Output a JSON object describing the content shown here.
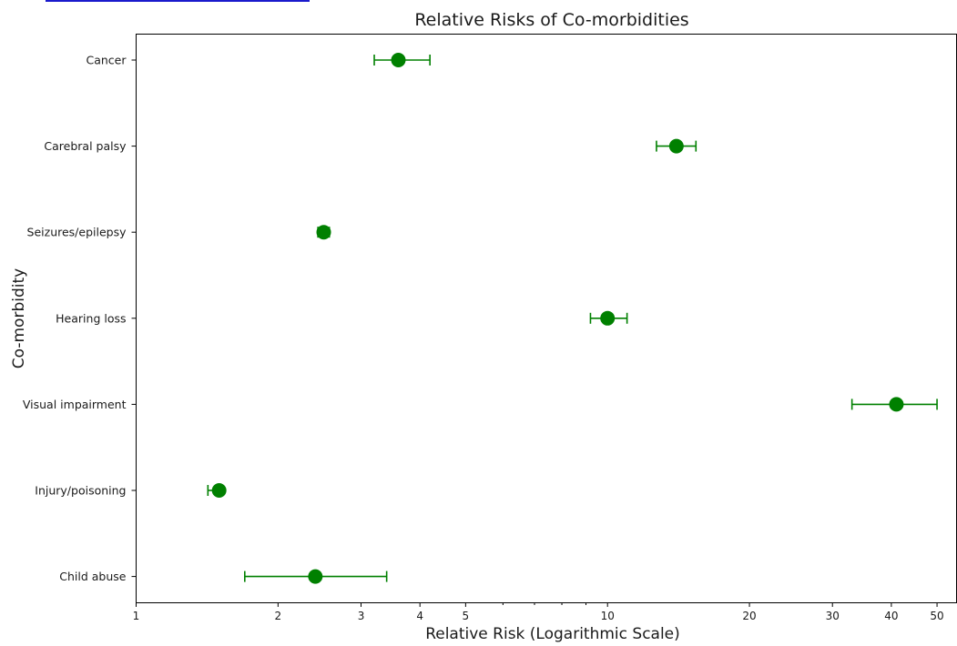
{
  "chart_data": {
    "type": "scatter",
    "title": "Relative Risks of Co-morbidities",
    "xlabel": "Relative Risk (Logarithmic Scale)",
    "ylabel": "Co-morbidity",
    "x_scale": "log",
    "xlim": [
      1,
      55
    ],
    "x_ticks": [
      1,
      2,
      3,
      4,
      5,
      10,
      20,
      30,
      40,
      50
    ],
    "x_tick_labels": [
      "1",
      "2",
      "3",
      "4",
      "5",
      "10",
      "20",
      "30",
      "40",
      "50"
    ],
    "grid": false,
    "legend": "none",
    "color": "#008000",
    "categories": [
      "Cancer",
      "Carebral palsy",
      "Seizures/epilepsy",
      "Hearing loss",
      "Visual impairment",
      "Injury/poisoning",
      "Child abuse"
    ],
    "points": [
      {
        "category": "Cancer",
        "value": 3.6,
        "ci_low": 3.2,
        "ci_high": 4.2
      },
      {
        "category": "Carebral palsy",
        "value": 14.0,
        "ci_low": 12.7,
        "ci_high": 15.4
      },
      {
        "category": "Seizures/epilepsy",
        "value": 2.5,
        "ci_low": 2.43,
        "ci_high": 2.57
      },
      {
        "category": "Hearing loss",
        "value": 10.0,
        "ci_low": 9.2,
        "ci_high": 11.0
      },
      {
        "category": "Visual impairment",
        "value": 41.0,
        "ci_low": 33.0,
        "ci_high": 50.0
      },
      {
        "category": "Injury/poisoning",
        "value": 1.5,
        "ci_low": 1.42,
        "ci_high": 1.5
      },
      {
        "category": "Child abuse",
        "value": 2.4,
        "ci_low": 1.7,
        "ci_high": 3.4
      }
    ]
  }
}
